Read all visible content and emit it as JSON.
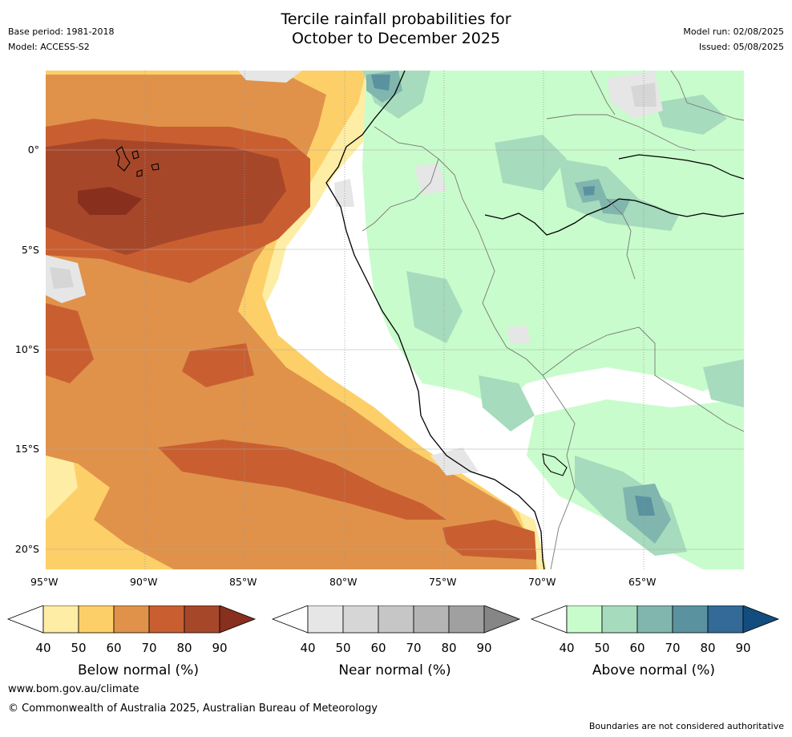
{
  "title_line1": "Tercile rainfall probabilities for",
  "title_line2": "October to December 2025",
  "base_period": "Base period: 1981-2018",
  "model": "Model: ACCESS-S2",
  "model_run": "Model run: 02/08/2025",
  "issued": "Issued: 05/08/2025",
  "lon_labels": [
    "95°W",
    "90°W",
    "85°W",
    "80°W",
    "75°W",
    "70°W",
    "65°W"
  ],
  "lat_labels": [
    "0°",
    "5°S",
    "10°S",
    "15°S",
    "20°S"
  ],
  "colorbars": [
    {
      "title": "Below normal (%)",
      "ticks": [
        "40",
        "50",
        "60",
        "70",
        "80",
        "90"
      ],
      "colors": [
        "#fdeda5",
        "#fdcf68",
        "#e0924a",
        "#c95f31",
        "#a7472a",
        "#882f1e"
      ]
    },
    {
      "title": "Near normal (%)",
      "ticks": [
        "40",
        "50",
        "60",
        "70",
        "80",
        "90"
      ],
      "colors": [
        "#e6e6e6",
        "#d6d6d6",
        "#c6c6c6",
        "#b4b4b4",
        "#a0a0a0",
        "#868686"
      ]
    },
    {
      "title": "Above normal (%)",
      "ticks": [
        "40",
        "50",
        "60",
        "70",
        "80",
        "90"
      ],
      "colors": [
        "#c9fccc",
        "#a6dbbd",
        "#80b6ae",
        "#5a92a0",
        "#336a97",
        "#134d80"
      ]
    }
  ],
  "website": "www.bom.gov.au/climate",
  "copyright": "© Commonwealth of Australia 2025, Australian Bureau of Meteorology",
  "disclaimer": "Boundaries are not considered authoritative"
}
